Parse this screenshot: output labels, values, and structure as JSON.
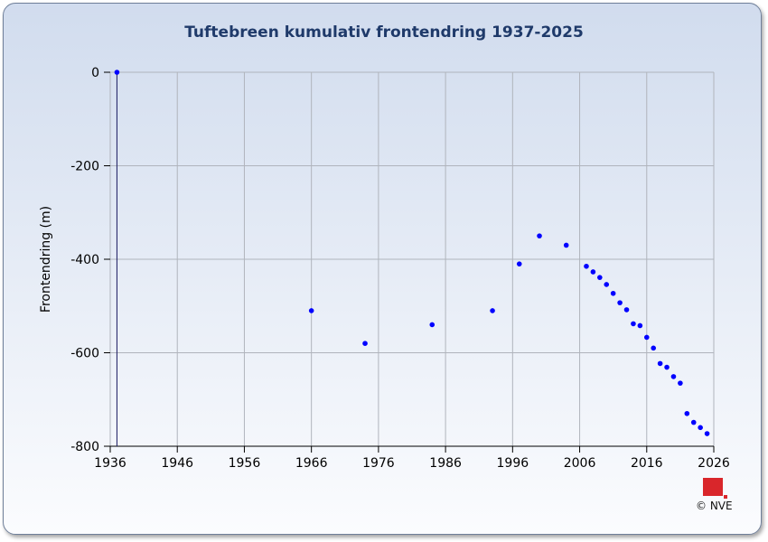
{
  "chart_data": {
    "type": "scatter",
    "title": "Tuftebreen kumulativ frontendring 1937-2025",
    "xlabel": "",
    "ylabel": "Frontendring (m)",
    "xlim": [
      1936,
      2026
    ],
    "ylim": [
      -800,
      0
    ],
    "xticks": [
      1936,
      1946,
      1956,
      1966,
      1976,
      1986,
      1996,
      2006,
      2016,
      2026
    ],
    "yticks": [
      0,
      -200,
      -400,
      -600,
      -800
    ],
    "grid": true,
    "color": "#0000ff",
    "x": [
      1937,
      1966,
      1974,
      1984,
      1993,
      1997,
      2000,
      2004,
      2007,
      2008,
      2009,
      2010,
      2011,
      2012,
      2013,
      2014,
      2015,
      2016,
      2017,
      2018,
      2019,
      2020,
      2021,
      2022,
      2023,
      2024,
      2025
    ],
    "y": [
      0,
      -510,
      -580,
      -540,
      -510,
      -410,
      -350,
      -370,
      -415,
      -427,
      -439,
      -454,
      -473,
      -493,
      -508,
      -538,
      -542,
      -567,
      -590,
      -623,
      -631,
      -651,
      -665,
      -730,
      -749,
      -760,
      -773
    ]
  },
  "footer": {
    "copyright": "© NVE",
    "logo_text": "NVE"
  }
}
